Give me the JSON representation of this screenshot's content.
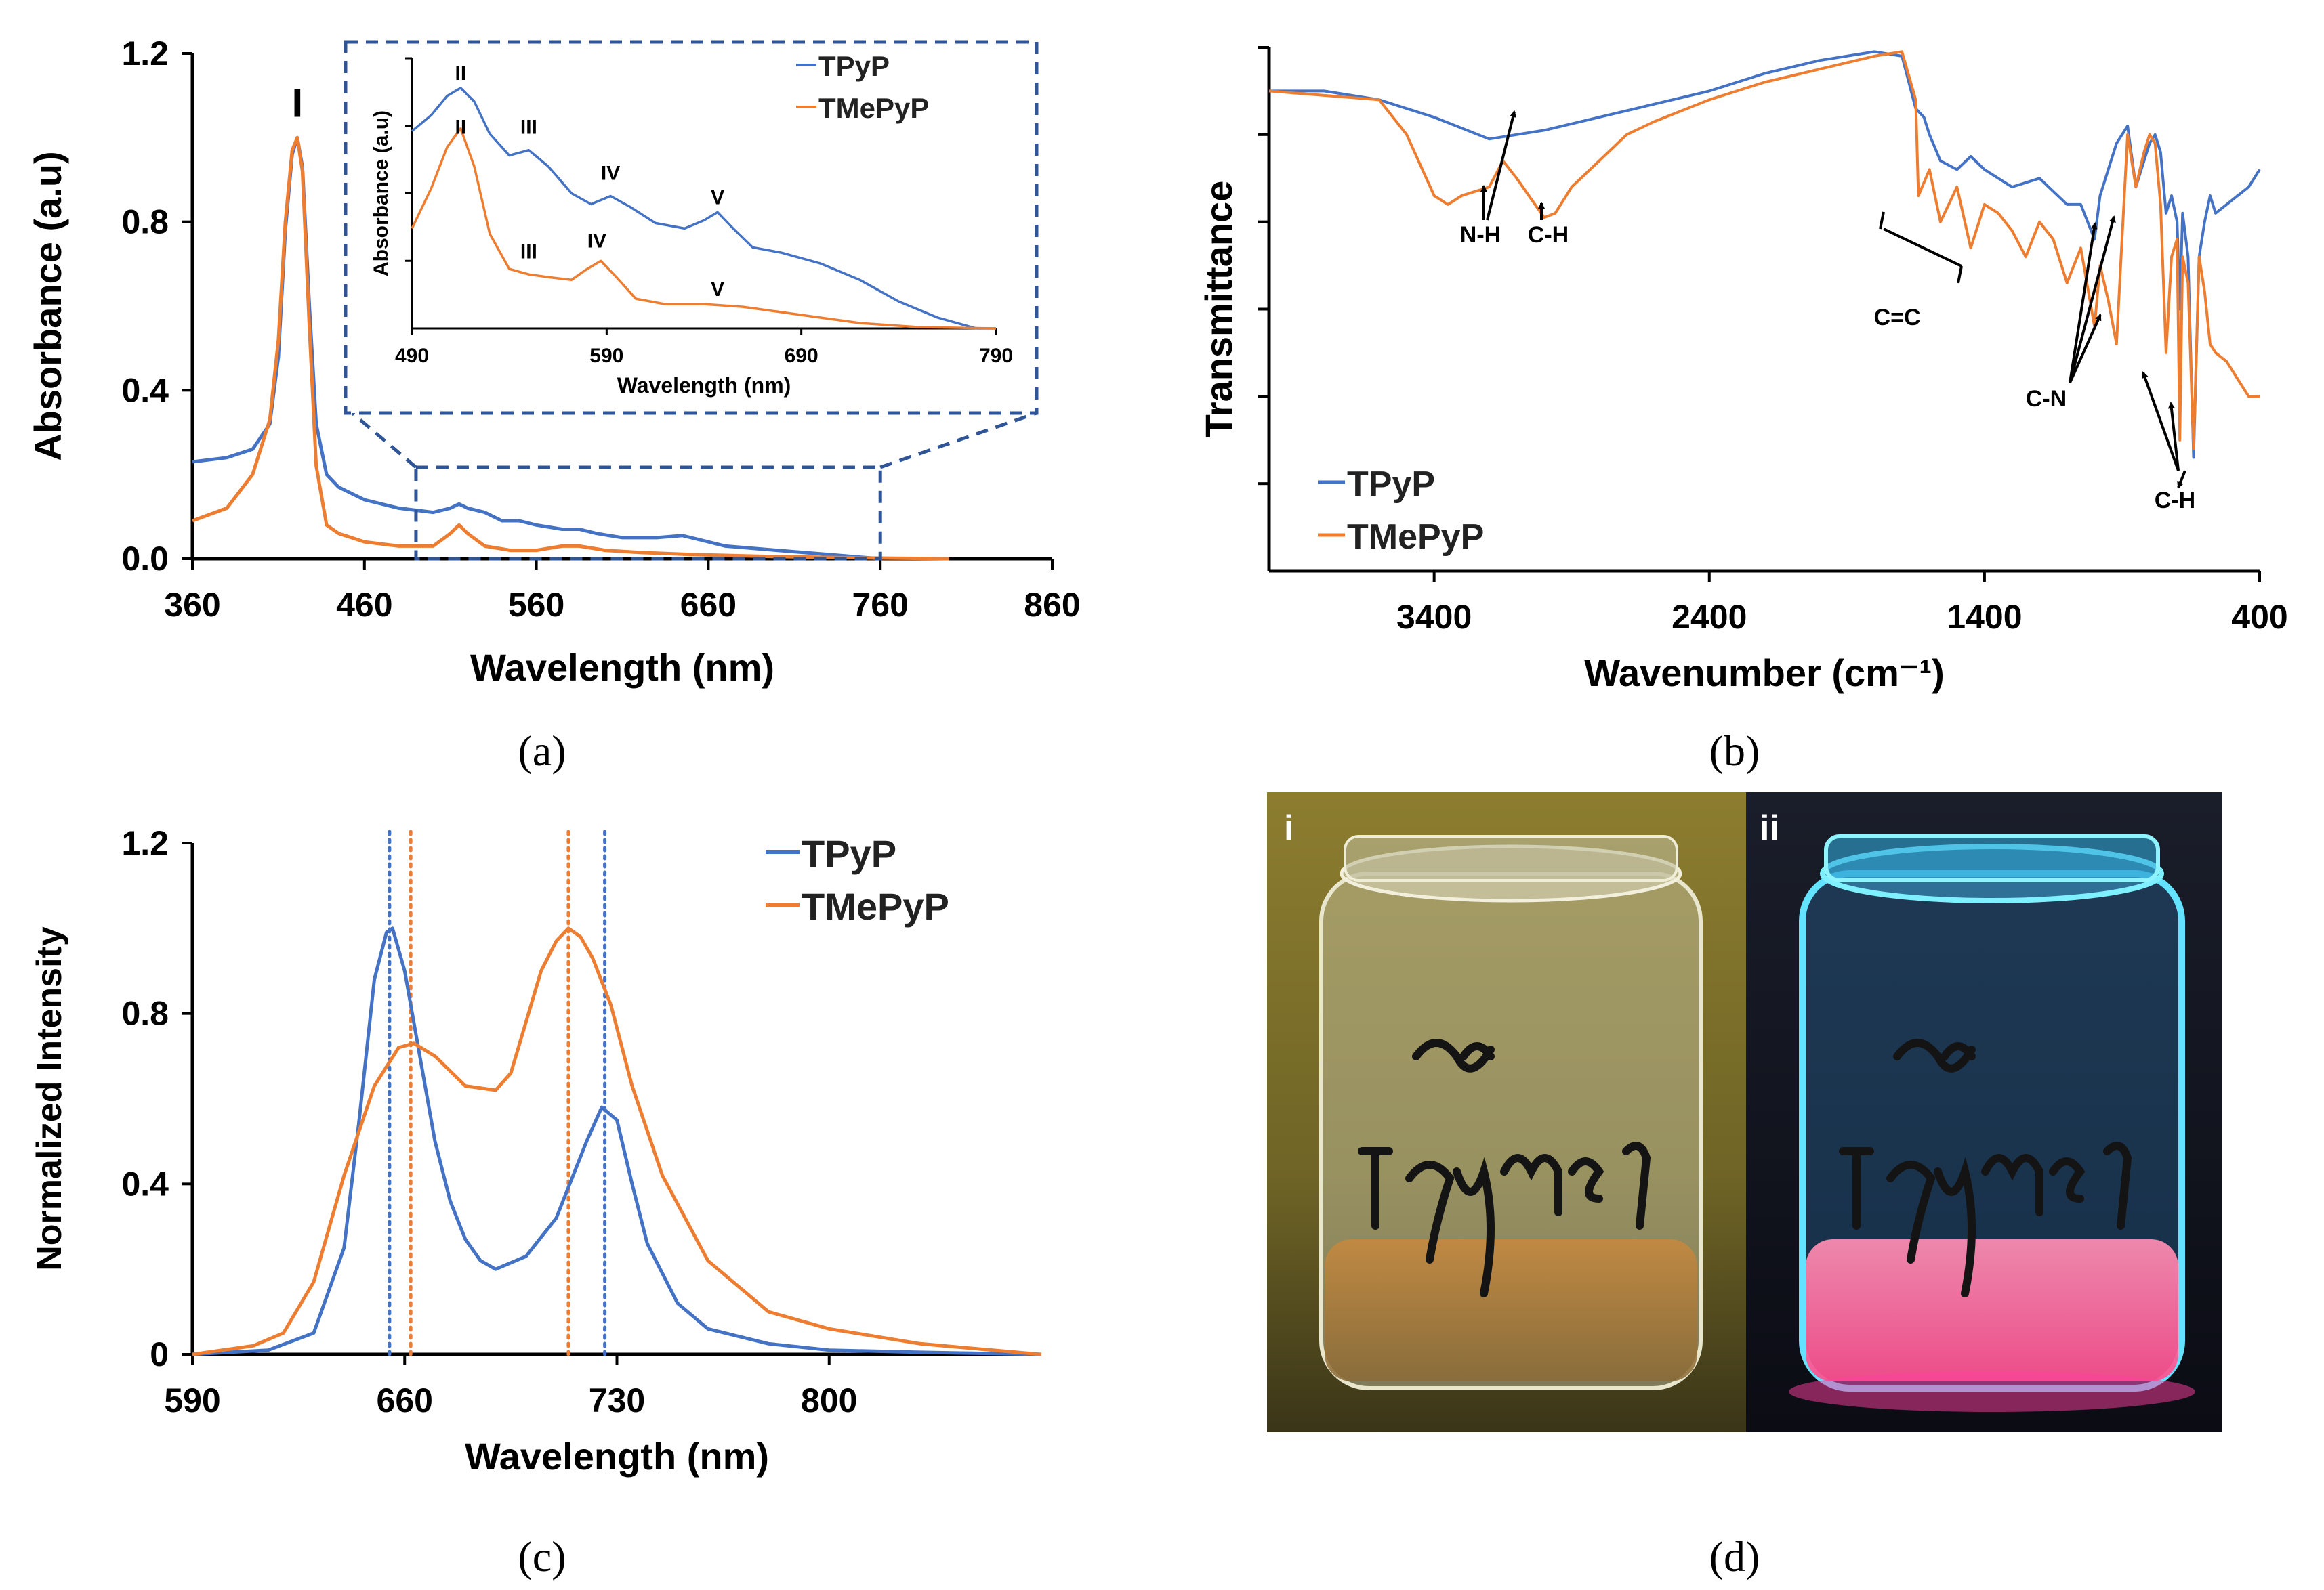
{
  "colors": {
    "tpyp": "#4472C4",
    "tmepyp": "#ED7D31",
    "axis": "#000000",
    "inset_box": "#2F5597"
  },
  "panels": {
    "a": {
      "caption_letter": "a"
    },
    "b": {
      "caption_letter": "b"
    },
    "c": {
      "caption_letter": "c"
    },
    "d": {
      "caption_letter": "d",
      "photo_labels": [
        "i",
        "ii"
      ]
    }
  },
  "chart_data": [
    {
      "id": "a",
      "type": "line",
      "xlabel": "Wavelength (nm)",
      "ylabel": "Absorbance (a.u)",
      "xlim": [
        360,
        860
      ],
      "ylim": [
        0,
        1.2
      ],
      "xticks": [
        360,
        460,
        560,
        660,
        760,
        860
      ],
      "yticks": [
        0.0,
        0.4,
        0.8,
        1.2
      ],
      "ytick_labels": [
        "0.0",
        "0.4",
        "0.8",
        "1.2"
      ],
      "annotations": [
        {
          "text": "I",
          "x": 421,
          "y": 1.05
        }
      ],
      "zoom_region": [
        490,
        760
      ],
      "series": [
        {
          "name": "TPyP",
          "color": "#4472C4",
          "x": [
            360,
            380,
            395,
            405,
            410,
            414,
            418,
            421,
            424,
            428,
            432,
            438,
            445,
            460,
            480,
            500,
            510,
            515,
            520,
            530,
            540,
            550,
            560,
            575,
            585,
            595,
            610,
            630,
            645,
            655,
            670,
            700,
            730,
            760
          ],
          "y": [
            0.23,
            0.24,
            0.26,
            0.32,
            0.48,
            0.78,
            0.96,
            1.0,
            0.93,
            0.6,
            0.32,
            0.2,
            0.17,
            0.14,
            0.12,
            0.11,
            0.12,
            0.13,
            0.12,
            0.11,
            0.09,
            0.09,
            0.08,
            0.07,
            0.07,
            0.06,
            0.05,
            0.05,
            0.055,
            0.045,
            0.03,
            0.02,
            0.01,
            0.0
          ]
        },
        {
          "name": "TMePyP",
          "color": "#ED7D31",
          "x": [
            360,
            380,
            395,
            405,
            410,
            414,
            418,
            421,
            424,
            428,
            432,
            438,
            445,
            460,
            480,
            500,
            510,
            515,
            520,
            530,
            545,
            560,
            575,
            585,
            600,
            620,
            650,
            700,
            750,
            800
          ],
          "y": [
            0.09,
            0.12,
            0.2,
            0.33,
            0.52,
            0.8,
            0.97,
            1.0,
            0.92,
            0.55,
            0.22,
            0.08,
            0.06,
            0.04,
            0.03,
            0.03,
            0.06,
            0.08,
            0.06,
            0.03,
            0.02,
            0.02,
            0.03,
            0.03,
            0.02,
            0.015,
            0.01,
            0.005,
            0.002,
            0.0
          ]
        }
      ],
      "legend": {
        "entries": [
          "TPyP",
          "TMePyP"
        ],
        "position": "top-right"
      }
    },
    {
      "id": "a-inset",
      "type": "line",
      "xlabel": "Wavelength (nm)",
      "ylabel": "Absorbance (a.u)",
      "xlim": [
        490,
        790
      ],
      "xticks": [
        490,
        590,
        690,
        790
      ],
      "annotations": [
        {
          "text": "II",
          "series": "TPyP",
          "x": 515,
          "y": 0.92
        },
        {
          "text": "III",
          "series": "TPyP",
          "x": 550,
          "y": 0.72
        },
        {
          "text": "IV",
          "series": "TPyP",
          "x": 592,
          "y": 0.55
        },
        {
          "text": "V",
          "series": "TPyP",
          "x": 647,
          "y": 0.46
        },
        {
          "text": "II",
          "series": "TMePyP",
          "x": 515,
          "y": 0.72
        },
        {
          "text": "III",
          "series": "TMePyP",
          "x": 550,
          "y": 0.26
        },
        {
          "text": "IV",
          "series": "TMePyP",
          "x": 585,
          "y": 0.3
        },
        {
          "text": "V",
          "series": "TMePyP",
          "x": 647,
          "y": 0.12
        }
      ],
      "series": [
        {
          "name": "TPyP",
          "color": "#4472C4",
          "x": [
            490,
            500,
            508,
            515,
            522,
            530,
            540,
            550,
            560,
            572,
            582,
            592,
            602,
            615,
            630,
            640,
            647,
            655,
            665,
            680,
            700,
            720,
            740,
            760,
            780,
            790
          ],
          "y": [
            0.73,
            0.79,
            0.86,
            0.89,
            0.84,
            0.72,
            0.64,
            0.66,
            0.6,
            0.5,
            0.46,
            0.49,
            0.45,
            0.39,
            0.37,
            0.4,
            0.43,
            0.37,
            0.3,
            0.28,
            0.24,
            0.18,
            0.1,
            0.04,
            0.0,
            0.0
          ]
        },
        {
          "name": "TMePyP",
          "color": "#ED7D31",
          "x": [
            490,
            500,
            508,
            515,
            522,
            530,
            540,
            550,
            560,
            572,
            580,
            587,
            595,
            605,
            620,
            640,
            660,
            690,
            720,
            750,
            790
          ],
          "y": [
            0.37,
            0.52,
            0.67,
            0.74,
            0.6,
            0.35,
            0.22,
            0.2,
            0.19,
            0.18,
            0.22,
            0.25,
            0.19,
            0.11,
            0.09,
            0.09,
            0.08,
            0.05,
            0.02,
            0.005,
            0.0
          ]
        }
      ],
      "legend": {
        "entries": [
          "TPyP",
          "TMePyP"
        ],
        "position": "top-right"
      }
    },
    {
      "id": "b",
      "type": "line",
      "xlabel": "Wavenumber (cm⁻¹)",
      "ylabel": "Transmittance",
      "xlim": [
        4000,
        400
      ],
      "xticks": [
        3400,
        2400,
        1400,
        400
      ],
      "ylim": [
        0,
        6
      ],
      "annotations": [
        {
          "text": "N-H",
          "x": 3230,
          "y": 3.76
        },
        {
          "text": "C-H",
          "x": 2960,
          "y": 3.76
        },
        {
          "text": "C=C",
          "x": 1540,
          "y": 3.2
        },
        {
          "text": "C-N",
          "x": 880,
          "y": 1.6
        },
        {
          "text": "C-H",
          "x": 650,
          "y": 0.55
        }
      ],
      "series": [
        {
          "name": "TPyP",
          "color": "#4472C4",
          "x": [
            4000,
            3800,
            3600,
            3400,
            3200,
            3100,
            3000,
            2800,
            2600,
            2400,
            2200,
            2000,
            1800,
            1700,
            1650,
            1620,
            1600,
            1560,
            1500,
            1450,
            1400,
            1300,
            1200,
            1100,
            1050,
            1000,
            980,
            950,
            920,
            880,
            850,
            820,
            800,
            780,
            760,
            740,
            720,
            700,
            690,
            680,
            660,
            640,
            620,
            600,
            580,
            560,
            520,
            480,
            440,
            400
          ],
          "y": [
            5.5,
            5.5,
            5.4,
            5.2,
            4.95,
            5.0,
            5.05,
            5.2,
            5.35,
            5.5,
            5.7,
            5.85,
            5.95,
            5.9,
            5.3,
            5.2,
            5.0,
            4.7,
            4.6,
            4.75,
            4.6,
            4.4,
            4.5,
            4.2,
            4.2,
            3.8,
            4.3,
            4.6,
            4.9,
            5.1,
            4.4,
            4.7,
            4.9,
            5.0,
            4.8,
            4.1,
            4.3,
            4.0,
            3.0,
            4.1,
            3.6,
            1.3,
            3.6,
            4.0,
            4.3,
            4.1,
            4.2,
            4.3,
            4.4,
            4.6
          ]
        },
        {
          "name": "TMePyP",
          "color": "#ED7D31",
          "x": [
            4000,
            3800,
            3600,
            3500,
            3400,
            3350,
            3300,
            3200,
            3150,
            3100,
            3000,
            2960,
            2900,
            2800,
            2700,
            2600,
            2400,
            2200,
            2000,
            1800,
            1700,
            1650,
            1640,
            1600,
            1560,
            1500,
            1450,
            1400,
            1350,
            1300,
            1250,
            1200,
            1150,
            1100,
            1050,
            1000,
            980,
            950,
            920,
            900,
            880,
            850,
            820,
            800,
            780,
            760,
            740,
            720,
            700,
            690,
            680,
            660,
            640,
            620,
            600,
            580,
            560,
            520,
            480,
            440,
            400
          ],
          "y": [
            5.5,
            5.45,
            5.4,
            5.0,
            4.3,
            4.2,
            4.3,
            4.4,
            4.7,
            4.5,
            4.05,
            4.1,
            4.4,
            4.7,
            5.0,
            5.15,
            5.4,
            5.6,
            5.75,
            5.9,
            5.95,
            5.4,
            4.3,
            4.6,
            4.0,
            4.4,
            3.7,
            4.2,
            4.1,
            3.9,
            3.6,
            4.0,
            3.8,
            3.3,
            3.7,
            2.8,
            3.5,
            3.1,
            2.6,
            3.8,
            5.0,
            4.4,
            4.8,
            5.0,
            4.9,
            4.2,
            2.5,
            3.6,
            3.8,
            1.5,
            3.6,
            3.3,
            1.4,
            3.6,
            3.2,
            2.6,
            2.5,
            2.4,
            2.2,
            2.0,
            2.0
          ]
        }
      ],
      "legend": {
        "entries": [
          "TPyP",
          "TMePyP"
        ],
        "position": "bottom-left"
      }
    },
    {
      "id": "c",
      "type": "line",
      "xlabel": "Wavelength (nm)",
      "ylabel": "Normalized Intensity",
      "xlim": [
        590,
        870
      ],
      "ylim": [
        0,
        1.2
      ],
      "xticks": [
        590,
        660,
        730,
        800
      ],
      "yticks": [
        0,
        0.4,
        0.8,
        1.2
      ],
      "ytick_labels": [
        "0",
        "0.4",
        "0.8",
        "1.2"
      ],
      "reference_lines": [
        {
          "x": 655,
          "color": "#4472C4"
        },
        {
          "x": 662,
          "color": "#ED7D31"
        },
        {
          "x": 714,
          "color": "#ED7D31"
        },
        {
          "x": 726,
          "color": "#4472C4"
        }
      ],
      "series": [
        {
          "name": "TPyP",
          "color": "#4472C4",
          "x": [
            590,
            615,
            630,
            640,
            645,
            650,
            654,
            656,
            660,
            665,
            670,
            675,
            680,
            685,
            690,
            700,
            710,
            720,
            725,
            730,
            735,
            740,
            750,
            760,
            780,
            800,
            830,
            870
          ],
          "y": [
            0.0,
            0.01,
            0.05,
            0.25,
            0.55,
            0.88,
            0.99,
            1.0,
            0.9,
            0.7,
            0.5,
            0.36,
            0.27,
            0.22,
            0.2,
            0.23,
            0.32,
            0.5,
            0.58,
            0.55,
            0.4,
            0.26,
            0.12,
            0.06,
            0.025,
            0.01,
            0.005,
            0.0
          ]
        },
        {
          "name": "TMePyP",
          "color": "#ED7D31",
          "x": [
            590,
            610,
            620,
            630,
            640,
            650,
            658,
            663,
            670,
            680,
            690,
            695,
            700,
            705,
            710,
            714,
            718,
            722,
            728,
            735,
            745,
            760,
            780,
            800,
            830,
            870
          ],
          "y": [
            0.0,
            0.02,
            0.05,
            0.17,
            0.42,
            0.63,
            0.72,
            0.73,
            0.7,
            0.63,
            0.62,
            0.66,
            0.78,
            0.9,
            0.97,
            1.0,
            0.98,
            0.93,
            0.82,
            0.63,
            0.42,
            0.22,
            0.1,
            0.06,
            0.025,
            0.0
          ]
        }
      ],
      "legend": {
        "entries": [
          "TPyP",
          "TMePyP"
        ],
        "position": "top-right"
      }
    }
  ]
}
